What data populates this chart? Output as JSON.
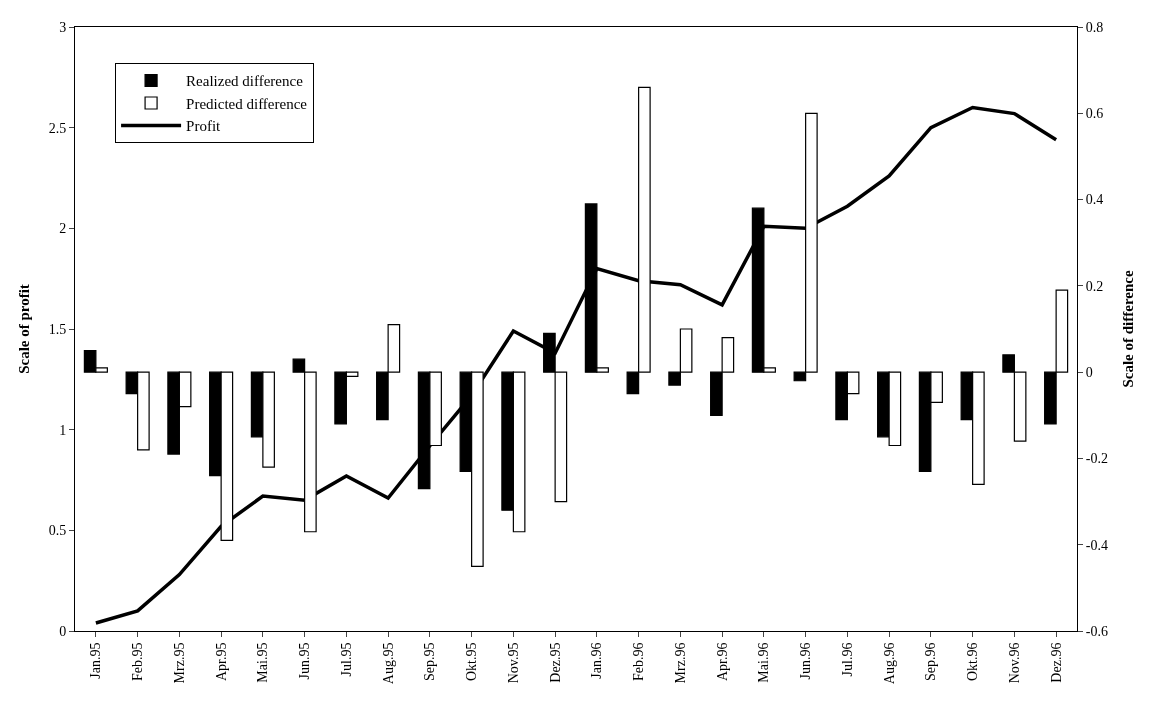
{
  "chart_data": {
    "type": "bar",
    "ylabel": "Scale of profit",
    "y2label": "Scale of difference",
    "categories": [
      "Jan.95",
      "Feb.95",
      "Mrz.95",
      "Apr.95",
      "Mai.95",
      "Jun.95",
      "Jul.95",
      "Aug.95",
      "Sep.95",
      "Okt.95",
      "Nov.95",
      "Dez.95",
      "Jan.96",
      "Feb.96",
      "Mrz.96",
      "Apr.96",
      "Mai.96",
      "Jun.96",
      "Jul.96",
      "Aug.96",
      "Sep.96",
      "Okt.96",
      "Nov.96",
      "Dez.96"
    ],
    "series": [
      {
        "name": "Realized difference",
        "axis": "y2",
        "color": "#000000",
        "values": [
          0.05,
          -0.05,
          -0.19,
          -0.24,
          -0.15,
          0.03,
          -0.12,
          -0.11,
          -0.27,
          -0.23,
          -0.32,
          0.09,
          0.39,
          -0.05,
          -0.03,
          -0.1,
          0.38,
          -0.02,
          -0.11,
          -0.15,
          -0.23,
          -0.11,
          0.04,
          -0.12
        ]
      },
      {
        "name": "Predicted difference",
        "axis": "y2",
        "color": "#ffffff",
        "values": [
          0.01,
          -0.18,
          -0.08,
          -0.39,
          -0.22,
          -0.37,
          -0.01,
          0.11,
          -0.17,
          -0.45,
          -0.37,
          -0.3,
          0.01,
          0.66,
          0.1,
          0.08,
          0.01,
          0.6,
          -0.05,
          -0.17,
          -0.07,
          -0.26,
          -0.16,
          0.19
        ]
      },
      {
        "name": "Profit",
        "type": "line",
        "color": "#000000",
        "values": [
          0.04,
          0.1,
          0.28,
          0.52,
          0.67,
          0.65,
          0.77,
          0.66,
          0.92,
          1.17,
          1.49,
          1.38,
          1.8,
          1.74,
          1.72,
          1.62,
          2.01,
          2.0,
          2.11,
          2.26,
          2.5,
          2.6,
          2.57,
          2.44
        ]
      }
    ],
    "ylim": [
      0,
      3
    ],
    "yticks": [
      0,
      0.5,
      1,
      1.5,
      2,
      2.5,
      3
    ],
    "y2lim": [
      -0.6,
      0.8
    ],
    "y2ticks": [
      -0.6,
      -0.4,
      -0.2,
      0,
      0.2,
      0.4,
      0.6,
      0.8
    ],
    "legend": "top left",
    "marker": "none",
    "line_style": "solid"
  }
}
